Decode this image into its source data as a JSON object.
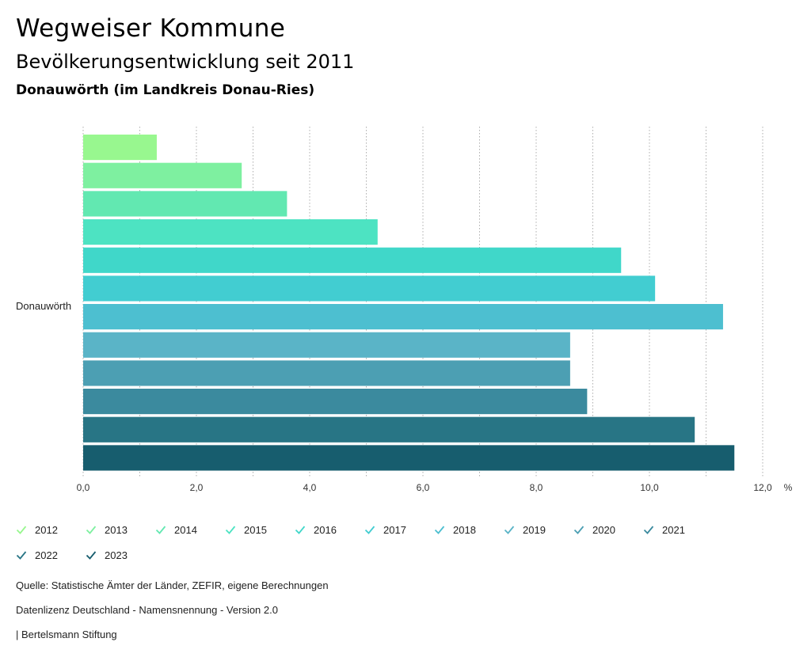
{
  "header": {
    "title": "Wegweiser Kommune",
    "subtitle": "Bevölkerungsentwicklung seit 2011",
    "region": "Donauwörth (im Landkreis Donau-Ries)"
  },
  "chart_data": {
    "type": "bar",
    "orientation": "horizontal",
    "categories": [
      "Donauwörth"
    ],
    "series": [
      {
        "name": "2012",
        "values": [
          1.3
        ],
        "color": "#98f78f"
      },
      {
        "name": "2013",
        "values": [
          2.8
        ],
        "color": "#7ef0a0"
      },
      {
        "name": "2014",
        "values": [
          3.6
        ],
        "color": "#62e8b1"
      },
      {
        "name": "2015",
        "values": [
          5.2
        ],
        "color": "#4de3c2"
      },
      {
        "name": "2016",
        "values": [
          9.5
        ],
        "color": "#40d7c9"
      },
      {
        "name": "2017",
        "values": [
          10.1
        ],
        "color": "#42cdd1"
      },
      {
        "name": "2018",
        "values": [
          11.3
        ],
        "color": "#4dbfd0"
      },
      {
        "name": "2019",
        "values": [
          8.6
        ],
        "color": "#5ab4c7"
      },
      {
        "name": "2020",
        "values": [
          8.6
        ],
        "color": "#4c9fb3"
      },
      {
        "name": "2021",
        "values": [
          8.9
        ],
        "color": "#3b8a9e"
      },
      {
        "name": "2022",
        "values": [
          10.8
        ],
        "color": "#287585"
      },
      {
        "name": "2023",
        "values": [
          11.5
        ],
        "color": "#175d6e"
      }
    ],
    "xlim": [
      0,
      12
    ],
    "xticks": [
      "0,0",
      "2,0",
      "4,0",
      "6,0",
      "8,0",
      "10,0",
      "12,0"
    ],
    "xunit": "%",
    "grid": true,
    "legend": "bottom"
  },
  "footer": {
    "source": "Quelle: Statistische Ämter der Länder, ZEFIR, eigene Berechnungen",
    "license": "Datenlizenz Deutschland - Namensnennung - Version 2.0",
    "publisher": "| Bertelsmann Stiftung"
  }
}
